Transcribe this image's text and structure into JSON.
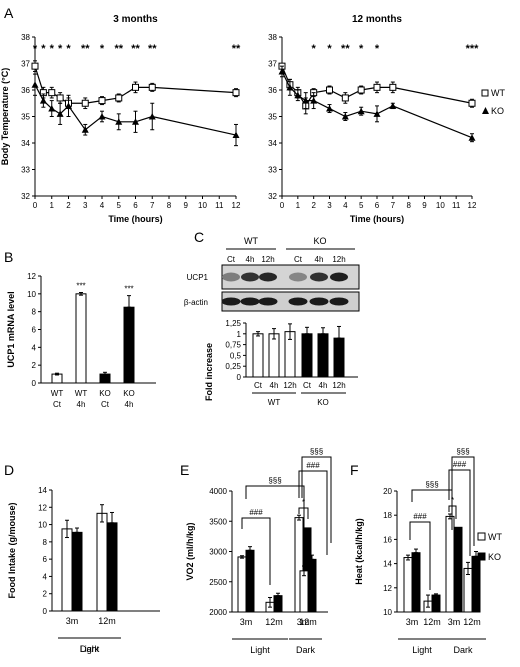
{
  "panel_letters": [
    "A",
    "B",
    "C",
    "D",
    "E",
    "F"
  ],
  "chart_data": [
    {
      "panel": "A",
      "type": "line",
      "title": "3 months",
      "xlabel": "Time (hours)",
      "ylabel": "Body Temperature (°C)",
      "xlim": [
        0,
        12
      ],
      "ylim": [
        32,
        38
      ],
      "xticks": [
        "0",
        "1",
        "2",
        "3",
        "4",
        "5",
        "6",
        "7",
        "8",
        "9",
        "10",
        "11",
        "12"
      ],
      "yticks": [
        "32",
        "33",
        "34",
        "35",
        "36",
        "37",
        "38"
      ],
      "x": [
        0,
        0.5,
        1,
        1.5,
        2,
        3,
        4,
        5,
        6,
        7,
        12
      ],
      "series": [
        {
          "name": "WT",
          "values": [
            36.9,
            35.9,
            35.9,
            35.7,
            35.5,
            35.5,
            35.6,
            35.7,
            36.1,
            36.1,
            35.9
          ]
        },
        {
          "name": "KO",
          "values": [
            36.2,
            35.6,
            35.3,
            35.1,
            35.4,
            34.5,
            35.0,
            34.8,
            34.8,
            35.0,
            34.3
          ]
        }
      ],
      "stars": [
        {
          "x": 0,
          "label": "*"
        },
        {
          "x": 0.5,
          "label": "*"
        },
        {
          "x": 1,
          "label": "*"
        },
        {
          "x": 1.5,
          "label": "*"
        },
        {
          "x": 2,
          "label": "*"
        },
        {
          "x": 3,
          "label": "**"
        },
        {
          "x": 4,
          "label": "*"
        },
        {
          "x": 5,
          "label": "**"
        },
        {
          "x": 6,
          "label": "**"
        },
        {
          "x": 7,
          "label": "**"
        },
        {
          "x": 12,
          "label": "**"
        }
      ]
    },
    {
      "panel": "A",
      "type": "line",
      "title": "12 months",
      "xlabel": "Time (hours)",
      "ylabel": "",
      "xlim": [
        0,
        12
      ],
      "ylim": [
        32,
        38
      ],
      "xticks": [
        "0",
        "1",
        "2",
        "3",
        "4",
        "5",
        "6",
        "7",
        "8",
        "9",
        "10",
        "11",
        "12"
      ],
      "yticks": [
        "32",
        "33",
        "34",
        "35",
        "36",
        "37",
        "38"
      ],
      "x": [
        0,
        0.5,
        1,
        1.5,
        2,
        3,
        4,
        5,
        6,
        7,
        12
      ],
      "series": [
        {
          "name": "WT",
          "values": [
            36.9,
            36.2,
            35.9,
            35.4,
            35.9,
            36.0,
            35.7,
            36.0,
            36.1,
            36.1,
            35.5
          ]
        },
        {
          "name": "KO",
          "values": [
            36.7,
            36.1,
            35.8,
            35.6,
            35.6,
            35.3,
            35.0,
            35.2,
            35.1,
            35.4,
            34.2
          ]
        }
      ],
      "stars": [
        {
          "x": 2,
          "label": "*"
        },
        {
          "x": 3,
          "label": "*"
        },
        {
          "x": 4,
          "label": "**"
        },
        {
          "x": 5,
          "label": "*"
        },
        {
          "x": 6,
          "label": "*"
        },
        {
          "x": 12,
          "label": "***"
        }
      ],
      "legend": [
        "WT",
        "KO"
      ]
    },
    {
      "panel": "B",
      "type": "bar",
      "ylabel": "UCP1 mRNA level",
      "ylim": [
        0,
        12
      ],
      "yticks": [
        "0",
        "2",
        "4",
        "6",
        "8",
        "10",
        "12"
      ],
      "categories": [
        [
          "WT",
          "Ct"
        ],
        [
          "WT",
          "4h"
        ],
        [
          "KO",
          "Ct"
        ],
        [
          "KO",
          "4h"
        ]
      ],
      "values": [
        1.0,
        10.0,
        1.0,
        8.5
      ],
      "errors": [
        0.1,
        0.15,
        0.2,
        1.3
      ],
      "fills": [
        "white",
        "white",
        "black",
        "black"
      ],
      "stars": [
        "",
        "***",
        "",
        "***"
      ]
    },
    {
      "panel": "C",
      "type": "bar",
      "ylabel": "Fold increase UCP1/β-actin",
      "ylim": [
        0,
        1.25
      ],
      "yticks": [
        "0",
        "0,25",
        "0,5",
        "0,75",
        "1",
        "1,25"
      ],
      "categories": [
        "Ct",
        "4h",
        "12h",
        "Ct",
        "4h",
        "12h"
      ],
      "groups": [
        "WT",
        "KO"
      ],
      "values": [
        1.0,
        1.0,
        1.05,
        1.0,
        1.0,
        0.9
      ],
      "errors": [
        0.05,
        0.12,
        0.18,
        0.15,
        0.14,
        0.27
      ],
      "fills": [
        "white",
        "white",
        "white",
        "black",
        "black",
        "black"
      ],
      "blot_header": [
        "WT",
        "KO"
      ],
      "blot_lanes": [
        "Ct",
        "4h",
        "12h",
        "Ct",
        "4h",
        "12h"
      ],
      "blot_rows": [
        "UCP1",
        "β-actin"
      ]
    },
    {
      "panel": "D",
      "type": "bar",
      "ylabel": "Food Intake (g/mouse)",
      "ylim": [
        0,
        14
      ],
      "yticks": [
        "0",
        "2",
        "4",
        "6",
        "8",
        "10",
        "12",
        "14"
      ],
      "categories": [
        "3m",
        "12m"
      ],
      "groups": [
        "Light",
        "Dark"
      ],
      "series": [
        {
          "name": "WT",
          "values": [
            9.5,
            11.3
          ],
          "errors": [
            1.0,
            1.0
          ]
        },
        {
          "name": "KO",
          "values": [
            9.1,
            10.2
          ],
          "errors": [
            0.5,
            1.2
          ]
        }
      ]
    },
    {
      "panel": "E",
      "type": "bar",
      "ylabel": "VO2 (ml/h/kg)",
      "ylim": [
        2000,
        4000
      ],
      "yticks": [
        "2000",
        "2500",
        "3000",
        "3500",
        "4000"
      ],
      "categories": [
        "3m",
        "12m",
        "3m",
        "12m"
      ],
      "groups": [
        "Light",
        "Dark"
      ],
      "series": [
        {
          "name": "WT",
          "values": [
            2910,
            2160,
            3560,
            2680
          ],
          "errors": [
            20,
            80,
            40,
            80
          ]
        },
        {
          "name": "KO",
          "values": [
            3020,
            2270,
            3390,
            2870
          ],
          "errors": [
            60,
            40,
            0,
            70
          ]
        }
      ],
      "annotations": [
        "###",
        "§§§",
        "*",
        "###",
        "§§§"
      ]
    },
    {
      "panel": "F",
      "type": "bar",
      "ylabel": "Heat (kcal/h/kg)",
      "ylim": [
        10,
        20
      ],
      "yticks": [
        "10",
        "12",
        "14",
        "16",
        "18",
        "20"
      ],
      "categories": [
        "3m",
        "12m",
        "3m",
        "12m"
      ],
      "groups": [
        "Light",
        "Dark"
      ],
      "series": [
        {
          "name": "WT",
          "values": [
            14.5,
            10.9,
            17.9,
            13.6
          ],
          "errors": [
            0.2,
            0.5,
            0.2,
            0.5
          ]
        },
        {
          "name": "KO",
          "values": [
            14.9,
            11.4,
            17.0,
            14.6
          ],
          "errors": [
            0.3,
            0.1,
            0,
            0.4
          ]
        }
      ],
      "annotations": [
        "###",
        "§§§",
        "*",
        "###",
        "§§§"
      ],
      "legend": [
        "WT",
        "KO"
      ]
    }
  ]
}
